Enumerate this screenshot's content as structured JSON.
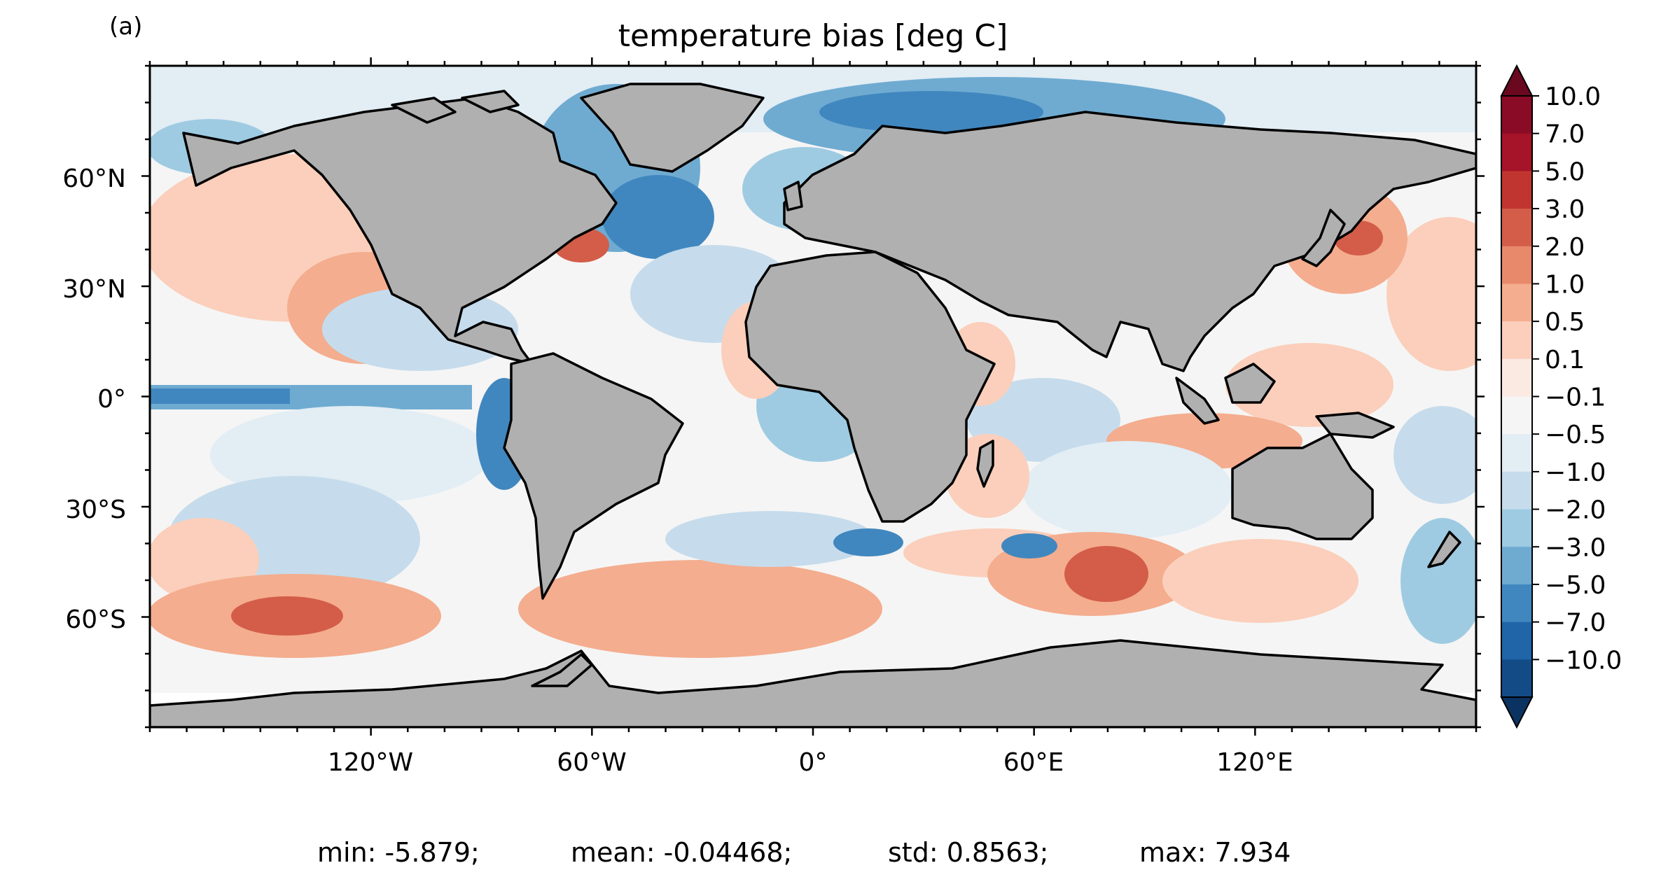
{
  "panel_label": "(a)",
  "title": "temperature bias [deg C]",
  "map": {
    "projection": "plate-carree",
    "land_color": "#b0b0b0",
    "coast_color": "#000000",
    "lon_ticks": [
      "120°W",
      "60°W",
      "0°",
      "60°E",
      "120°E"
    ],
    "lat_ticks": [
      "60°N",
      "30°N",
      "0°",
      "30°S",
      "60°S"
    ]
  },
  "colorbar": {
    "extend": "both",
    "labels": [
      "10.0",
      "7.0",
      "5.0",
      "3.0",
      "2.0",
      "1.0",
      "0.5",
      "0.1",
      "−0.1",
      "−0.5",
      "−1.0",
      "−2.0",
      "−3.0",
      "−5.0",
      "−7.0",
      "−10.0"
    ],
    "colors_top_to_bottom": [
      "#8a0b25",
      "#a51428",
      "#c13530",
      "#d35d49",
      "#e7896a",
      "#f4ad8e",
      "#fbcfbb",
      "#faeae2",
      "#f5f5f5",
      "#e2edf4",
      "#c6dcec",
      "#9ecbe2",
      "#6fabd1",
      "#4187bf",
      "#1f65a8",
      "#134b87"
    ],
    "over_color": "#6a0820",
    "under_color": "#0b3361"
  },
  "stats": {
    "min": "min: -5.879;",
    "mean": "mean: -0.04468;",
    "std": "std: 0.8563;",
    "max": "max: 7.934"
  }
}
